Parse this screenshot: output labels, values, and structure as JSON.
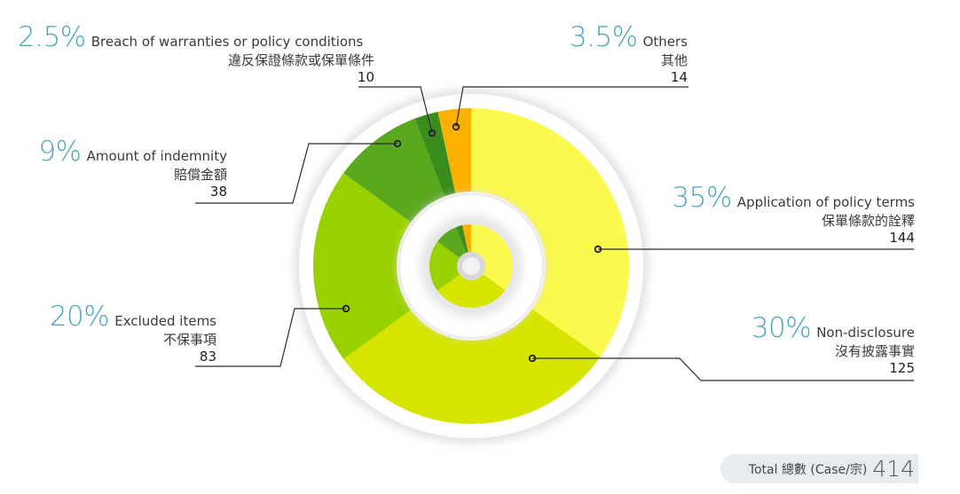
{
  "chart_data": {
    "type": "pie",
    "style": "donut",
    "total_label": "Total 總數 (Case/宗)",
    "total_value": 414,
    "slices": [
      {
        "key": "application",
        "pct": "35%",
        "en": "Application of policy terms",
        "zh": "保單條款的詮釋",
        "count": 144,
        "color": "#fbf94e"
      },
      {
        "key": "nondisclosure",
        "pct": "30%",
        "en": "Non-disclosure",
        "zh": "沒有披露事實",
        "count": 125,
        "color": "#d5e500"
      },
      {
        "key": "excluded",
        "pct": "20%",
        "en": "Excluded items",
        "zh": "不保事項",
        "count": 83,
        "color": "#99d100"
      },
      {
        "key": "indemnity",
        "pct": "9%",
        "en": "Amount of indemnity",
        "zh": "賠償金額",
        "count": 38,
        "color": "#5aa81e"
      },
      {
        "key": "breach",
        "pct": "2.5%",
        "en": "Breach of warranties or policy conditions",
        "zh": "違反保證條款或保單條件",
        "count": 10,
        "color": "#3a8c1c"
      },
      {
        "key": "others",
        "pct": "3.5%",
        "en": "Others",
        "zh": "其他",
        "count": 14,
        "color": "#fcb000"
      }
    ]
  }
}
